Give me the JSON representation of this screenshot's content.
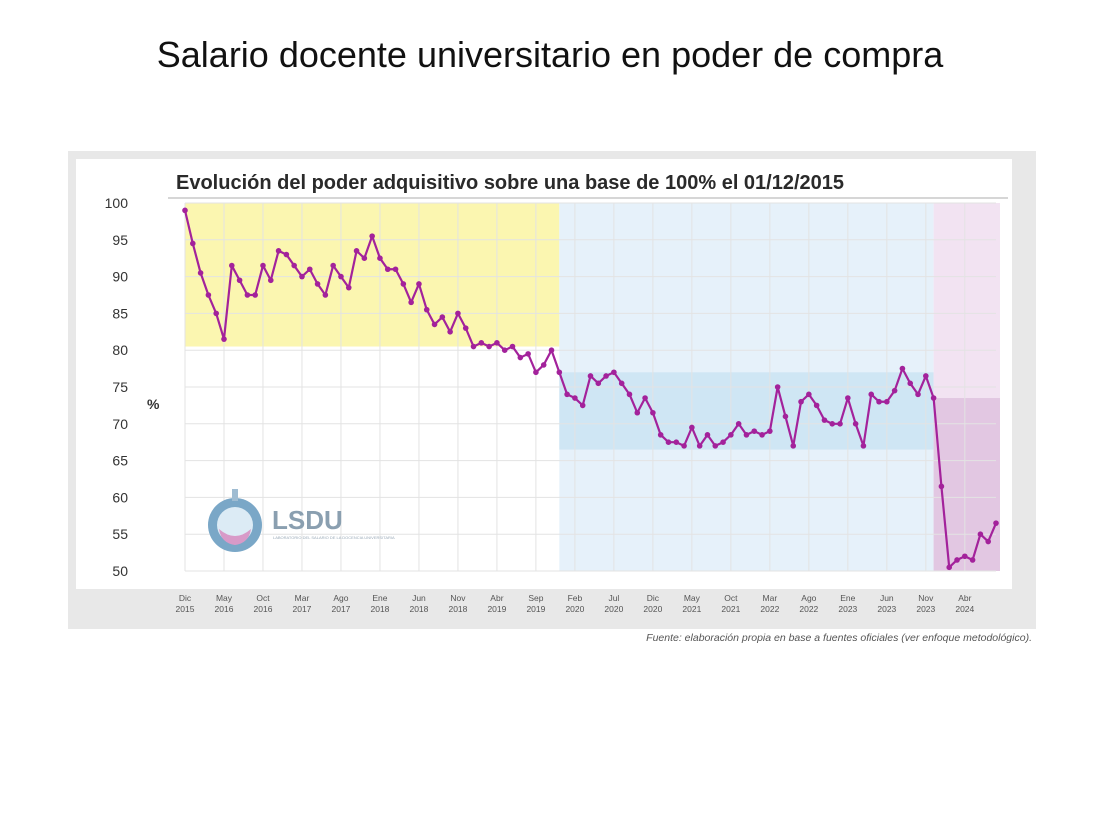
{
  "page": {
    "title": "Salario docente universitario en poder de compra",
    "source_note": "Fuente: elaboración propia en base a fuentes oficiales (ver enfoque metodológico)."
  },
  "logo": {
    "text": "LSDU",
    "subtitle": "LABORATORIO DEL SALARIO DE LA DOCENCIA UNIVERSITARIA"
  },
  "chart_data": {
    "type": "line",
    "title": "Evolución del poder adquisitivo sobre una base de 100% el 01/12/2015",
    "ylabel": "%",
    "xlabel": "",
    "ylim": [
      50,
      100
    ],
    "yticks": [
      100,
      95,
      90,
      85,
      80,
      75,
      70,
      65,
      60,
      55,
      50
    ],
    "grid": true,
    "line_color": "#a3229b",
    "start": "2015-12",
    "x_tick_labels": [
      [
        "Dic",
        "2015"
      ],
      [
        "May",
        "2016"
      ],
      [
        "Oct",
        "2016"
      ],
      [
        "Mar",
        "2017"
      ],
      [
        "Ago",
        "2017"
      ],
      [
        "Ene",
        "2018"
      ],
      [
        "Jun",
        "2018"
      ],
      [
        "Nov",
        "2018"
      ],
      [
        "Abr",
        "2019"
      ],
      [
        "Sep",
        "2019"
      ],
      [
        "Feb",
        "2020"
      ],
      [
        "Jul",
        "2020"
      ],
      [
        "Dic",
        "2020"
      ],
      [
        "May",
        "2021"
      ],
      [
        "Oct",
        "2021"
      ],
      [
        "Mar",
        "2022"
      ],
      [
        "Ago",
        "2022"
      ],
      [
        "Ene",
        "2023"
      ],
      [
        "Jun",
        "2023"
      ],
      [
        "Nov",
        "2023"
      ],
      [
        "Abr",
        "2024"
      ]
    ],
    "shaded_periods": [
      {
        "from": "2015-12",
        "to": "2019-12",
        "color": "#fbf6b0",
        "y_from": 80.5,
        "y_to": 100
      },
      {
        "from": "2019-12",
        "to": "2023-12",
        "color": "#e6f1fa",
        "y_from": 50,
        "y_to": 100
      },
      {
        "from": "2019-12",
        "to": "2023-12",
        "color": "#cfe6f4",
        "y_from": 66.5,
        "y_to": 77
      },
      {
        "from": "2023-12",
        "to": "2024-09",
        "color": "#f2e3f2",
        "y_from": 50,
        "y_to": 100
      },
      {
        "from": "2023-12",
        "to": "2024-09",
        "color": "#e2c7e2",
        "y_from": 50,
        "y_to": 73.5
      }
    ],
    "series": [
      {
        "values": [
          99,
          94.5,
          90.5,
          87.5,
          85,
          81.5,
          91.5,
          89.5,
          87.5,
          87.5,
          91.5,
          89.5,
          93.5,
          93,
          91.5,
          90,
          91,
          89,
          87.5,
          91.5,
          90,
          88.5,
          93.5,
          92.5,
          95.5,
          92.5,
          91,
          91,
          89,
          86.5,
          89,
          85.5,
          83.5,
          84.5,
          82.5,
          85,
          83,
          80.5,
          81,
          80.5,
          81,
          80,
          80.5,
          79,
          79.5,
          77,
          78,
          80,
          77,
          74,
          73.5,
          72.5,
          76.5,
          75.5,
          76.5,
          77,
          75.5,
          74,
          71.5,
          73.5,
          71.5,
          68.5,
          67.5,
          67.5,
          67,
          69.5,
          67,
          68.5,
          67,
          67.5,
          68.5,
          70,
          68.5,
          69,
          68.5,
          69,
          75,
          71,
          67,
          73,
          74,
          72.5,
          70.5,
          70,
          70,
          73.5,
          70,
          67,
          74,
          73,
          73,
          74.5,
          77.5,
          75.5,
          74,
          76.5,
          73.5,
          61.5,
          50.5,
          51.5,
          52,
          51.5,
          55,
          54,
          56.5
        ]
      }
    ]
  }
}
